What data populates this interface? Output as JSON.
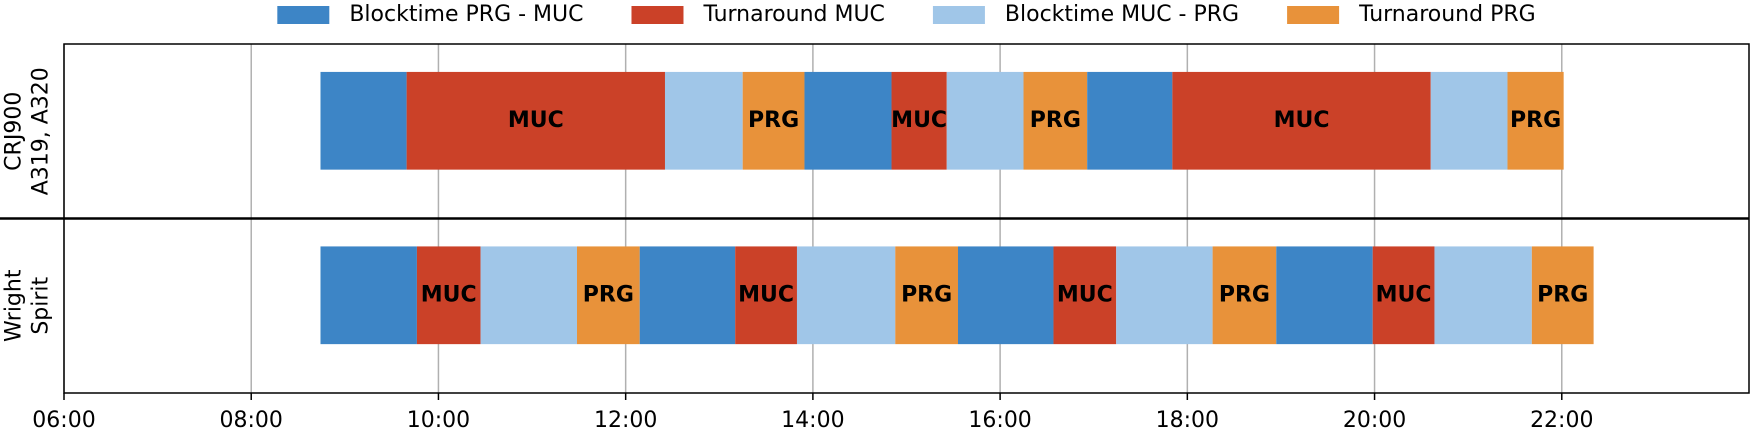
{
  "chart_data": {
    "type": "gantt",
    "series": [
      {
        "name": "Blocktime PRG - MUC",
        "color": "#3d85c6"
      },
      {
        "name": "Turnaround MUC",
        "color": "#cb4128"
      },
      {
        "name": "Blocktime MUC - PRG",
        "color": "#a0c6e8"
      },
      {
        "name": "Turnaround PRG",
        "color": "#e8923a"
      }
    ],
    "rows": [
      {
        "label": [
          "CRJ900",
          "A319, A320"
        ],
        "segments": [
          {
            "series": 0,
            "start": 8.74,
            "end": 9.66
          },
          {
            "series": 1,
            "start": 9.66,
            "end": 12.42,
            "label": "MUC"
          },
          {
            "series": 2,
            "start": 12.42,
            "end": 13.25
          },
          {
            "series": 3,
            "start": 13.25,
            "end": 13.91,
            "label": "PRG"
          },
          {
            "series": 0,
            "start": 13.91,
            "end": 14.84
          },
          {
            "series": 1,
            "start": 14.84,
            "end": 15.43,
            "label": "MUC"
          },
          {
            "series": 2,
            "start": 15.43,
            "end": 16.25
          },
          {
            "series": 3,
            "start": 16.25,
            "end": 16.93,
            "label": "PRG"
          },
          {
            "series": 0,
            "start": 16.93,
            "end": 17.84
          },
          {
            "series": 1,
            "start": 17.84,
            "end": 20.6,
            "label": "MUC"
          },
          {
            "series": 2,
            "start": 20.6,
            "end": 21.42
          },
          {
            "series": 3,
            "start": 21.42,
            "end": 22.02,
            "label": "PRG"
          }
        ]
      },
      {
        "label": [
          "Wright",
          "Spirit"
        ],
        "segments": [
          {
            "series": 0,
            "start": 8.74,
            "end": 9.77
          },
          {
            "series": 1,
            "start": 9.77,
            "end": 10.45,
            "label": "MUC"
          },
          {
            "series": 2,
            "start": 10.45,
            "end": 11.48
          },
          {
            "series": 3,
            "start": 11.48,
            "end": 12.15,
            "label": "PRG"
          },
          {
            "series": 0,
            "start": 12.15,
            "end": 13.17
          },
          {
            "series": 1,
            "start": 13.17,
            "end": 13.83,
            "label": "MUC"
          },
          {
            "series": 2,
            "start": 13.83,
            "end": 14.88
          },
          {
            "series": 3,
            "start": 14.88,
            "end": 15.55,
            "label": "PRG"
          },
          {
            "series": 0,
            "start": 15.55,
            "end": 16.57
          },
          {
            "series": 1,
            "start": 16.57,
            "end": 17.24,
            "label": "MUC"
          },
          {
            "series": 2,
            "start": 17.24,
            "end": 18.27
          },
          {
            "series": 3,
            "start": 18.27,
            "end": 18.95,
            "label": "PRG"
          },
          {
            "series": 0,
            "start": 18.95,
            "end": 19.98
          },
          {
            "series": 1,
            "start": 19.98,
            "end": 20.64,
            "label": "MUC"
          },
          {
            "series": 2,
            "start": 20.64,
            "end": 21.68
          },
          {
            "series": 3,
            "start": 21.68,
            "end": 22.34,
            "label": "PRG"
          }
        ]
      }
    ],
    "xlim": [
      6,
      24
    ],
    "xticks": [
      {
        "value": 6,
        "label": "06:00"
      },
      {
        "value": 8,
        "label": "08:00"
      },
      {
        "value": 10,
        "label": "10:00"
      },
      {
        "value": 12,
        "label": "12:00"
      },
      {
        "value": 14,
        "label": "14:00"
      },
      {
        "value": 16,
        "label": "16:00"
      },
      {
        "value": 18,
        "label": "18:00"
      },
      {
        "value": 20,
        "label": "20:00"
      },
      {
        "value": 22,
        "label": "22:00"
      }
    ],
    "grid": true
  }
}
